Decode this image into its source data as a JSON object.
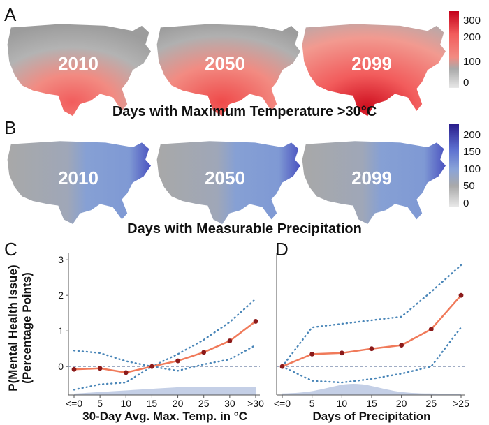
{
  "panels": {
    "A": {
      "letter": "A",
      "title": "Days with Maximum Temperature >30°C",
      "years": [
        "2010",
        "2050",
        "2099"
      ],
      "colorbar": {
        "ticks": [
          "300",
          "200",
          "100",
          "0"
        ],
        "colors": [
          "#c4001a",
          "#f25c5c",
          "#f28b82",
          "#a9a9a9",
          "#e8e8e8"
        ]
      }
    },
    "B": {
      "letter": "B",
      "title": "Days with Measurable Precipitation",
      "years": [
        "2010",
        "2050",
        "2099"
      ],
      "colorbar": {
        "ticks": [
          "200",
          "150",
          "100",
          "50",
          "0"
        ],
        "colors": [
          "#2a1e8c",
          "#5c6fd0",
          "#8aa4d8",
          "#a9a9a9",
          "#e8e8e8"
        ]
      }
    }
  },
  "shared_ylabel": [
    "P(Mental Health Issue)",
    "(Percentage Points)"
  ],
  "chart_data": [
    {
      "panel": "C",
      "type": "line",
      "categories": [
        "<=0",
        "5",
        "10",
        "15",
        "20",
        "25",
        "30",
        ">30"
      ],
      "values": [
        -0.08,
        -0.05,
        -0.17,
        0.0,
        0.16,
        0.4,
        0.72,
        1.27
      ],
      "ci_upper": [
        0.45,
        0.38,
        0.15,
        0.0,
        0.35,
        0.75,
        1.25,
        1.9
      ],
      "ci_lower": [
        -0.65,
        -0.5,
        -0.45,
        0.0,
        -0.12,
        0.06,
        0.2,
        0.6
      ],
      "xlabel": "30-Day Avg. Max. Temp. in °C",
      "yticks": [
        0,
        1,
        2,
        3
      ],
      "ylim": [
        -0.8,
        3.2
      ],
      "reference_line": 0,
      "line_color": "#f07a5a",
      "point_color": "#8b1a1a",
      "ci_color": "#4a86b8",
      "density_color": "#b5c3e0"
    },
    {
      "panel": "D",
      "type": "line",
      "categories": [
        "<=0",
        "5",
        "10",
        "15",
        "20",
        "25",
        ">25"
      ],
      "values": [
        0.0,
        0.35,
        0.38,
        0.5,
        0.6,
        1.05,
        2.0
      ],
      "ci_upper": [
        0.0,
        1.1,
        1.2,
        1.3,
        1.4,
        2.1,
        2.85
      ],
      "ci_lower": [
        0.0,
        -0.4,
        -0.45,
        -0.35,
        -0.2,
        0.0,
        1.1
      ],
      "xlabel": "Days of Precipitation",
      "yticks": [
        0,
        1,
        2,
        3
      ],
      "ylim": [
        -0.8,
        3.2
      ],
      "reference_line": 0,
      "line_color": "#f07a5a",
      "point_color": "#8b1a1a",
      "ci_color": "#4a86b8",
      "density_color": "#b5c3e0"
    }
  ]
}
